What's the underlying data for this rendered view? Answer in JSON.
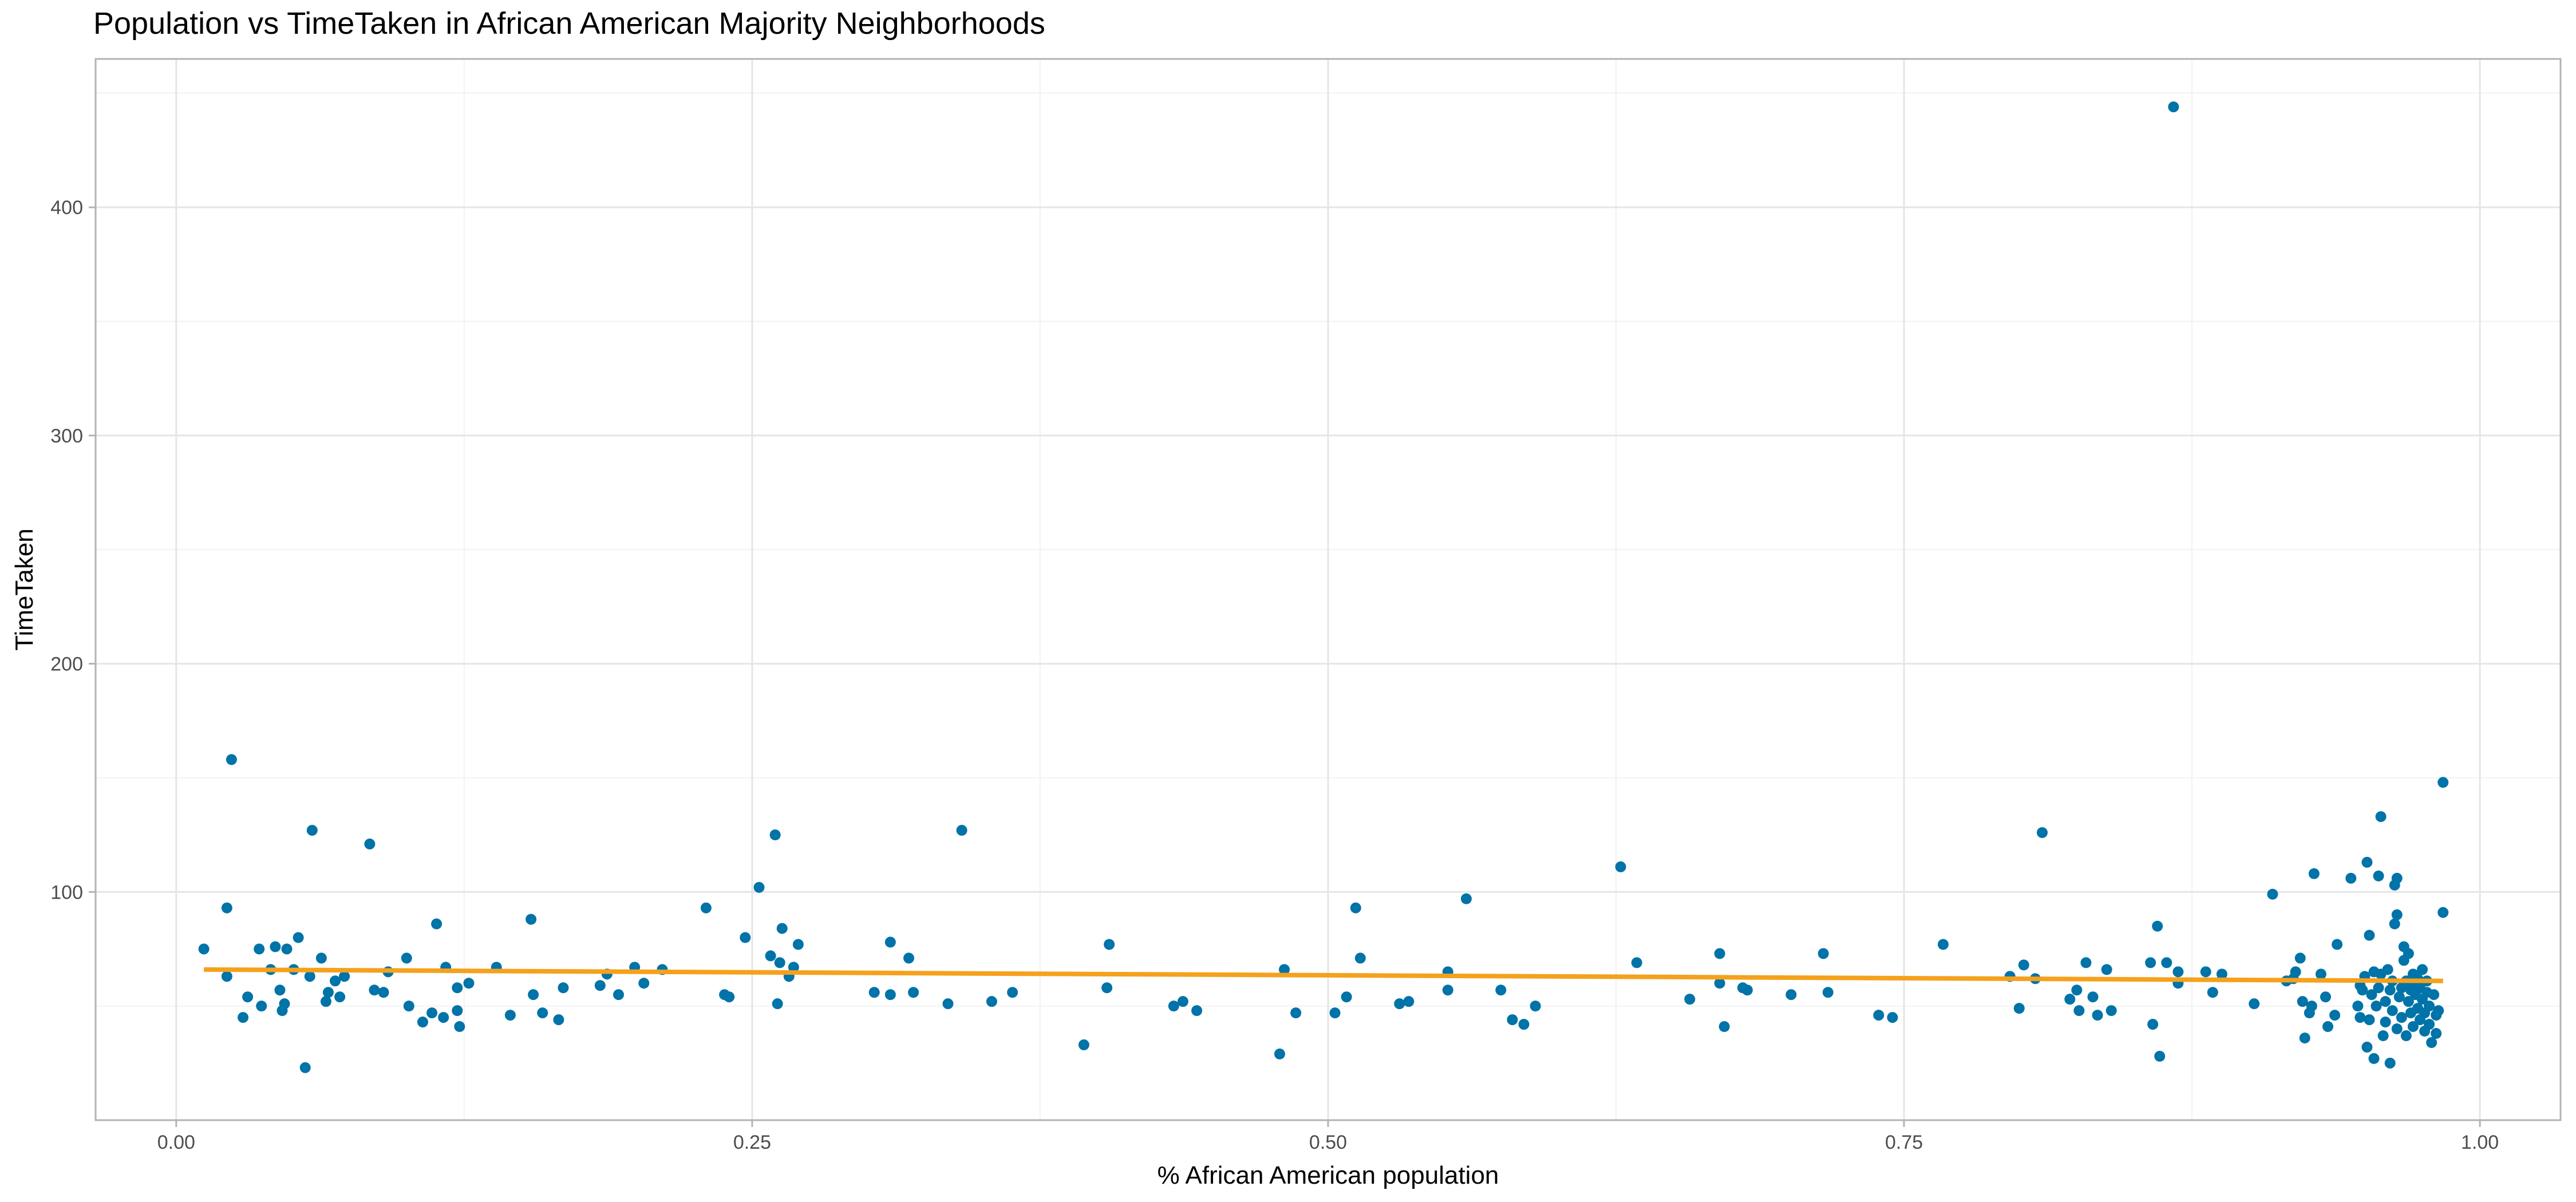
{
  "chart_data": {
    "type": "scatter",
    "title": "Population vs TimeTaken in African American Majority Neighborhoods",
    "xlabel": "% African American population",
    "ylabel": "TimeTaken",
    "xlim": [
      -0.035,
      1.035
    ],
    "ylim": [
      0,
      465
    ],
    "x_ticks": [
      0,
      0.25,
      0.5,
      0.75,
      1
    ],
    "x_tick_labels": [
      "0.00",
      "0.25",
      "0.50",
      "0.75",
      "1.00"
    ],
    "y_ticks": [
      100,
      200,
      300,
      400
    ],
    "y_tick_labels": [
      "100",
      "200",
      "300",
      "400"
    ],
    "grid": true,
    "legend": "none",
    "point_color": "#0073a8",
    "trend_color": "#f5a11c",
    "trend_line": {
      "x": [
        0.012,
        0.984
      ],
      "y": [
        66,
        61
      ]
    },
    "points": [
      [
        0.012,
        75
      ],
      [
        0.022,
        63
      ],
      [
        0.022,
        93
      ],
      [
        0.024,
        158
      ],
      [
        0.029,
        45
      ],
      [
        0.031,
        54
      ],
      [
        0.036,
        75
      ],
      [
        0.037,
        50
      ],
      [
        0.041,
        66
      ],
      [
        0.043,
        76
      ],
      [
        0.045,
        57
      ],
      [
        0.046,
        48
      ],
      [
        0.047,
        51
      ],
      [
        0.048,
        75
      ],
      [
        0.051,
        66
      ],
      [
        0.053,
        80
      ],
      [
        0.056,
        23
      ],
      [
        0.058,
        63
      ],
      [
        0.059,
        127
      ],
      [
        0.063,
        71
      ],
      [
        0.065,
        52
      ],
      [
        0.066,
        56
      ],
      [
        0.069,
        61
      ],
      [
        0.071,
        54
      ],
      [
        0.073,
        63
      ],
      [
        0.084,
        121
      ],
      [
        0.086,
        57
      ],
      [
        0.09,
        56
      ],
      [
        0.092,
        65
      ],
      [
        0.1,
        71
      ],
      [
        0.101,
        50
      ],
      [
        0.107,
        43
      ],
      [
        0.111,
        47
      ],
      [
        0.113,
        86
      ],
      [
        0.116,
        45
      ],
      [
        0.117,
        67
      ],
      [
        0.122,
        48
      ],
      [
        0.122,
        58
      ],
      [
        0.123,
        41
      ],
      [
        0.127,
        60
      ],
      [
        0.139,
        67
      ],
      [
        0.145,
        46
      ],
      [
        0.154,
        88
      ],
      [
        0.155,
        55
      ],
      [
        0.159,
        47
      ],
      [
        0.166,
        44
      ],
      [
        0.168,
        58
      ],
      [
        0.184,
        59
      ],
      [
        0.187,
        64
      ],
      [
        0.192,
        55
      ],
      [
        0.199,
        67
      ],
      [
        0.203,
        60
      ],
      [
        0.211,
        66
      ],
      [
        0.238,
        55
      ],
      [
        0.24,
        54
      ],
      [
        0.23,
        93
      ],
      [
        0.247,
        80
      ],
      [
        0.253,
        102
      ],
      [
        0.258,
        72
      ],
      [
        0.26,
        125
      ],
      [
        0.261,
        51
      ],
      [
        0.262,
        69
      ],
      [
        0.263,
        84
      ],
      [
        0.266,
        63
      ],
      [
        0.268,
        67
      ],
      [
        0.27,
        77
      ],
      [
        0.303,
        56
      ],
      [
        0.31,
        78
      ],
      [
        0.31,
        55
      ],
      [
        0.318,
        71
      ],
      [
        0.32,
        56
      ],
      [
        0.335,
        51
      ],
      [
        0.341,
        127
      ],
      [
        0.354,
        52
      ],
      [
        0.363,
        56
      ],
      [
        0.394,
        33
      ],
      [
        0.404,
        58
      ],
      [
        0.405,
        77
      ],
      [
        0.433,
        50
      ],
      [
        0.437,
        52
      ],
      [
        0.443,
        48
      ],
      [
        0.479,
        29
      ],
      [
        0.481,
        66
      ],
      [
        0.486,
        47
      ],
      [
        0.503,
        47
      ],
      [
        0.508,
        54
      ],
      [
        0.512,
        93
      ],
      [
        0.514,
        71
      ],
      [
        0.531,
        51
      ],
      [
        0.535,
        52
      ],
      [
        0.552,
        57
      ],
      [
        0.552,
        65
      ],
      [
        0.56,
        97
      ],
      [
        0.575,
        57
      ],
      [
        0.58,
        44
      ],
      [
        0.585,
        42
      ],
      [
        0.59,
        50
      ],
      [
        0.627,
        111
      ],
      [
        0.634,
        69
      ],
      [
        0.657,
        53
      ],
      [
        0.67,
        60
      ],
      [
        0.67,
        73
      ],
      [
        0.672,
        41
      ],
      [
        0.68,
        58
      ],
      [
        0.682,
        57
      ],
      [
        0.701,
        55
      ],
      [
        0.715,
        73
      ],
      [
        0.717,
        56
      ],
      [
        0.739,
        46
      ],
      [
        0.745,
        45
      ],
      [
        0.767,
        77
      ],
      [
        0.796,
        63
      ],
      [
        0.8,
        49
      ],
      [
        0.802,
        68
      ],
      [
        0.807,
        62
      ],
      [
        0.81,
        126
      ],
      [
        0.822,
        53
      ],
      [
        0.825,
        57
      ],
      [
        0.826,
        48
      ],
      [
        0.829,
        69
      ],
      [
        0.832,
        54
      ],
      [
        0.834,
        46
      ],
      [
        0.838,
        66
      ],
      [
        0.84,
        48
      ],
      [
        0.857,
        69
      ],
      [
        0.858,
        42
      ],
      [
        0.86,
        85
      ],
      [
        0.861,
        28
      ],
      [
        0.864,
        69
      ],
      [
        0.867,
        444
      ],
      [
        0.869,
        60
      ],
      [
        0.869,
        65
      ],
      [
        0.881,
        65
      ],
      [
        0.884,
        56
      ],
      [
        0.888,
        64
      ],
      [
        0.902,
        51
      ],
      [
        0.91,
        99
      ],
      [
        0.916,
        61
      ],
      [
        0.919,
        62
      ],
      [
        0.92,
        65
      ],
      [
        0.922,
        71
      ],
      [
        0.923,
        52
      ],
      [
        0.924,
        36
      ],
      [
        0.926,
        47
      ],
      [
        0.927,
        50
      ],
      [
        0.928,
        108
      ],
      [
        0.931,
        64
      ],
      [
        0.933,
        54
      ],
      [
        0.934,
        41
      ],
      [
        0.937,
        46
      ],
      [
        0.938,
        77
      ],
      [
        0.944,
        106
      ],
      [
        0.947,
        50
      ],
      [
        0.948,
        45
      ],
      [
        0.948,
        59
      ],
      [
        0.949,
        57
      ],
      [
        0.95,
        63
      ],
      [
        0.951,
        113
      ],
      [
        0.951,
        32
      ],
      [
        0.952,
        81
      ],
      [
        0.952,
        44
      ],
      [
        0.953,
        55
      ],
      [
        0.954,
        65
      ],
      [
        0.954,
        27
      ],
      [
        0.955,
        50
      ],
      [
        0.956,
        107
      ],
      [
        0.956,
        58
      ],
      [
        0.957,
        133
      ],
      [
        0.957,
        64
      ],
      [
        0.958,
        37
      ],
      [
        0.959,
        43
      ],
      [
        0.959,
        52
      ],
      [
        0.96,
        66
      ],
      [
        0.961,
        25
      ],
      [
        0.961,
        57
      ],
      [
        0.962,
        61
      ],
      [
        0.962,
        48
      ],
      [
        0.963,
        86
      ],
      [
        0.963,
        103
      ],
      [
        0.964,
        90
      ],
      [
        0.964,
        106
      ],
      [
        0.964,
        40
      ],
      [
        0.965,
        54
      ],
      [
        0.966,
        45
      ],
      [
        0.966,
        58
      ],
      [
        0.967,
        70
      ],
      [
        0.967,
        76
      ],
      [
        0.968,
        61
      ],
      [
        0.968,
        37
      ],
      [
        0.969,
        52
      ],
      [
        0.969,
        73
      ],
      [
        0.97,
        47
      ],
      [
        0.97,
        57
      ],
      [
        0.971,
        64
      ],
      [
        0.971,
        41
      ],
      [
        0.972,
        55
      ],
      [
        0.972,
        60
      ],
      [
        0.973,
        49
      ],
      [
        0.973,
        62
      ],
      [
        0.974,
        44
      ],
      [
        0.974,
        58
      ],
      [
        0.975,
        53
      ],
      [
        0.975,
        66
      ],
      [
        0.976,
        47
      ],
      [
        0.976,
        39
      ],
      [
        0.977,
        56
      ],
      [
        0.977,
        61
      ],
      [
        0.978,
        42
      ],
      [
        0.978,
        50
      ],
      [
        0.979,
        34
      ],
      [
        0.98,
        55
      ],
      [
        0.981,
        46
      ],
      [
        0.981,
        38
      ],
      [
        0.982,
        48
      ],
      [
        0.984,
        148
      ],
      [
        0.984,
        91
      ]
    ]
  }
}
